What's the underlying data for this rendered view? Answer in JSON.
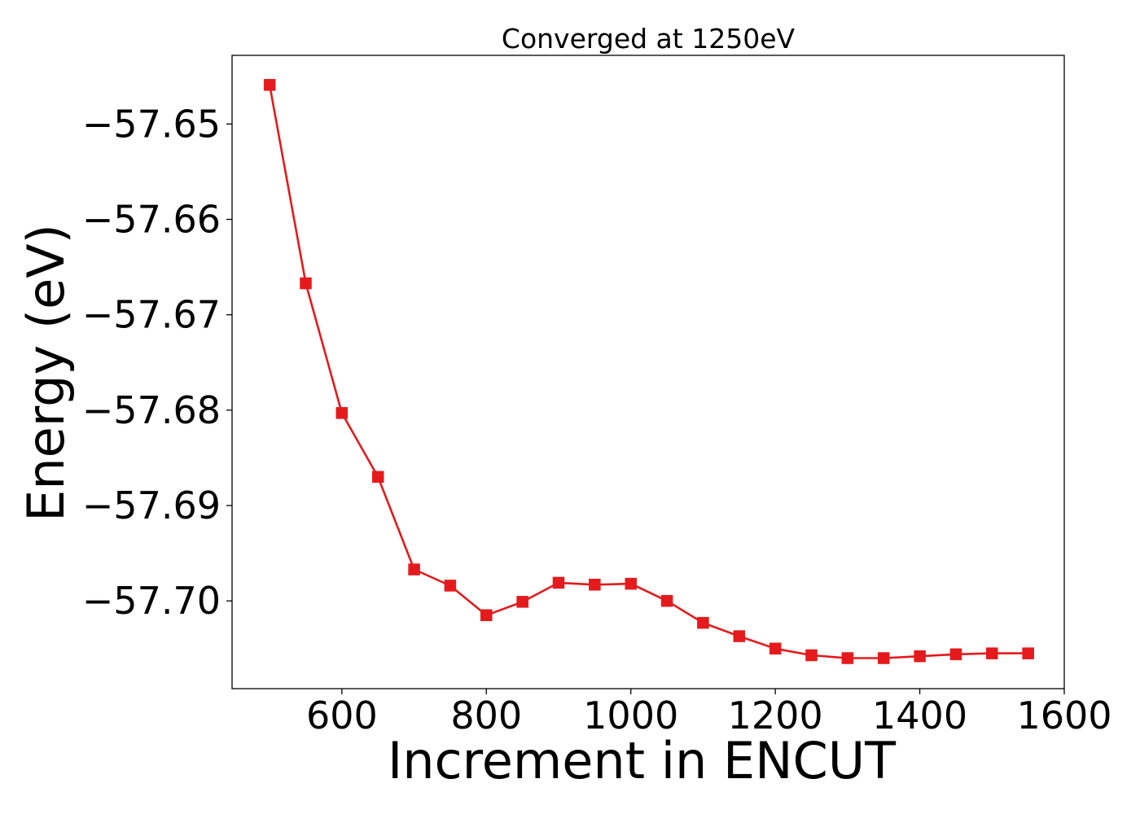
{
  "chart_data": {
    "type": "line",
    "title": "Converged at 1250eV",
    "xlabel": "Increment in ENCUT",
    "ylabel": "Energy (eV)",
    "xlim": [
      448,
      1600
    ],
    "ylim": [
      -57.7092,
      -57.6428
    ],
    "x_ticks": [
      600,
      800,
      1000,
      1200,
      1400,
      1600
    ],
    "x_tick_labels": [
      "600",
      "800",
      "1000",
      "1200",
      "1400",
      "1600"
    ],
    "y_ticks": [
      -57.65,
      -57.66,
      -57.67,
      -57.68,
      -57.69,
      -57.7
    ],
    "y_tick_labels": [
      "−57.65",
      "−57.66",
      "−57.67",
      "−57.68",
      "−57.69",
      "−57.70"
    ],
    "grid": false,
    "marker": "square",
    "color": "#e41a1c",
    "series": [
      {
        "x": [
          500,
          550,
          600,
          650,
          700,
          750,
          800,
          850,
          900,
          950,
          1000,
          1050,
          1100,
          1150,
          1200,
          1250,
          1300,
          1350,
          1400,
          1450,
          1500,
          1550
        ],
        "values": [
          -57.6459,
          -57.6667,
          -57.6803,
          -57.687,
          -57.6967,
          -57.6984,
          -57.7015,
          -57.7001,
          -57.6981,
          -57.6983,
          -57.6982,
          -57.7,
          -57.7023,
          -57.7037,
          -57.705,
          -57.7057,
          -57.706,
          -57.706,
          -57.7058,
          -57.7056,
          -57.7055,
          -57.7055
        ]
      }
    ]
  }
}
